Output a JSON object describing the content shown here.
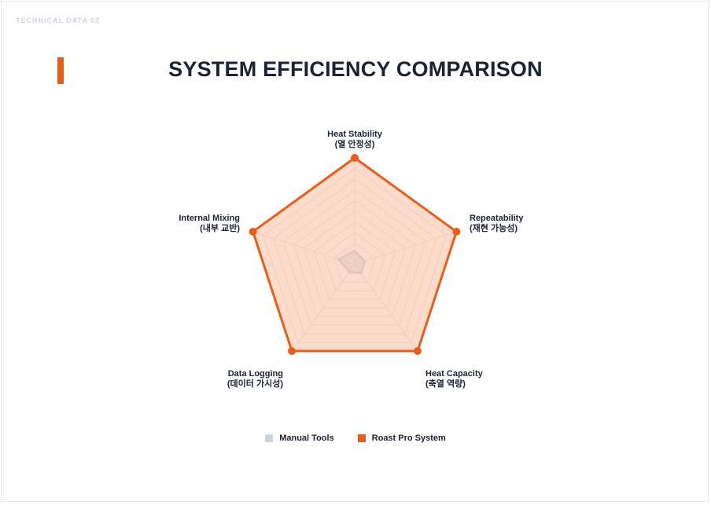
{
  "header": {
    "kicker": "TECHNICAL DATA 02",
    "title": "SYSTEM EFFICIENCY COMPARISON"
  },
  "colors": {
    "accent": "#e85d1a",
    "accent_fill": "rgba(247,170,130,0.42)",
    "manual": "#cbd5e1",
    "manual_fill": "rgba(203,213,225,0.35)",
    "grid": "#e2e8f0",
    "text": "#1a2233"
  },
  "chart_data": {
    "type": "radar",
    "title": "SYSTEM EFFICIENCY COMPARISON",
    "axes": [
      {
        "line1": "Heat Stability",
        "line2": "(열 안정성)"
      },
      {
        "line1": "Repeatability",
        "line2": "(재현 가능성)"
      },
      {
        "line1": "Heat Capacity",
        "line2": "(축열 역량)"
      },
      {
        "line1": "Data Logging",
        "line2": "(데이터 가시성)"
      },
      {
        "line1": "Internal Mixing",
        "line2": "(내부 교반)"
      }
    ],
    "scale_max": 10,
    "grid": true,
    "series": [
      {
        "name": "Manual Tools",
        "values": [
          1.3,
          1.0,
          1.0,
          0.8,
          1.6
        ]
      },
      {
        "name": "Roast Pro System",
        "values": [
          10,
          10,
          10,
          10,
          10
        ]
      }
    ],
    "legend_position": "bottom-center"
  },
  "legend": {
    "manual_label": "Manual Tools",
    "roast_label": "Roast Pro System"
  }
}
